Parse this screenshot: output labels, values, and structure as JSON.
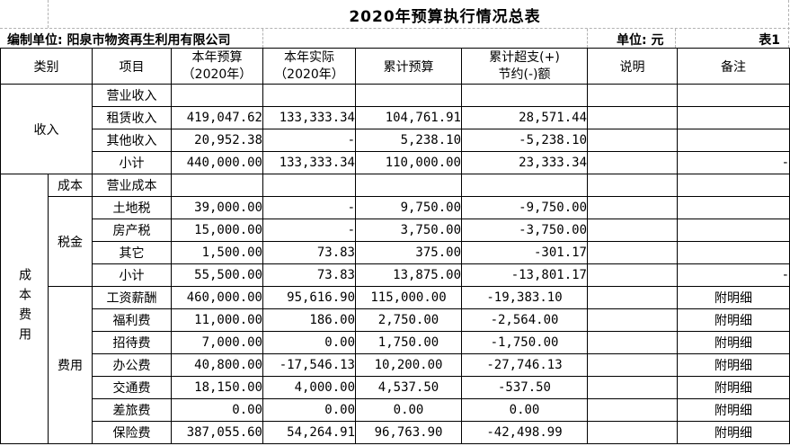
{
  "title": "2020年预算执行情况总表",
  "info": {
    "prepared_by_label": "编制单位:",
    "prepared_by_value": "阳泉市物资再生利用有限公司",
    "unit_label": "单位: 元",
    "sheet_label": "表1"
  },
  "table": {
    "header": {
      "category": "类别",
      "item": "项目",
      "year_budget_line1": "本年预算",
      "year_budget_line2": "（2020年）",
      "year_actual_line1": "本年实际",
      "year_actual_line2": "（2020年）",
      "cum_budget": "累计预算",
      "variance_line1": "累计超支(+)",
      "variance_line2": "节约(-)额",
      "note": "说明",
      "remark": "备注"
    },
    "groups": [
      {
        "label": "收入",
        "orientation": "horizontal",
        "subgroups": [
          {
            "label": "",
            "cum_align": "right",
            "rows": [
              {
                "item": "营业收入",
                "budget": "",
                "actual": "",
                "cum_budget": "",
                "variance": "",
                "note": "",
                "remark": ""
              },
              {
                "item": "租赁收入",
                "budget": "419,047.62",
                "actual": "133,333.34",
                "cum_budget": "104,761.91",
                "variance": "28,571.44",
                "note": "",
                "remark": ""
              },
              {
                "item": "其他收入",
                "budget": "20,952.38",
                "actual": "-",
                "cum_budget": "5,238.10",
                "variance": "-5,238.10",
                "note": "",
                "remark": ""
              },
              {
                "item": "小计",
                "budget": "440,000.00",
                "actual": "133,333.34",
                "cum_budget": "110,000.00",
                "variance": "23,333.34",
                "note": "",
                "remark": "-"
              }
            ]
          }
        ]
      },
      {
        "label": "成本费用",
        "orientation": "vertical",
        "subgroups": [
          {
            "label": "成本",
            "cum_align": "right",
            "rows": [
              {
                "item": "营业成本",
                "budget": "",
                "actual": "",
                "cum_budget": "",
                "variance": "",
                "note": "",
                "remark": ""
              }
            ]
          },
          {
            "label": "税金",
            "cum_align": "right",
            "rows": [
              {
                "item": "土地税",
                "budget": "39,000.00",
                "actual": "-",
                "cum_budget": "9,750.00",
                "variance": "-9,750.00",
                "note": "",
                "remark": ""
              },
              {
                "item": "房产税",
                "budget": "15,000.00",
                "actual": "-",
                "cum_budget": "3,750.00",
                "variance": "-3,750.00",
                "note": "",
                "remark": ""
              },
              {
                "item": "其它",
                "budget": "1,500.00",
                "actual": "73.83",
                "cum_budget": "375.00",
                "variance": "-301.17",
                "note": "",
                "remark": ""
              },
              {
                "item": "小计",
                "budget": "55,500.00",
                "actual": "73.83",
                "cum_budget": "13,875.00",
                "variance": "-13,801.17",
                "note": "",
                "remark": "-"
              }
            ]
          },
          {
            "label": "费用",
            "cum_align": "center",
            "rows": [
              {
                "item": "工资薪酬",
                "budget": "460,000.00",
                "actual": "95,616.90",
                "cum_budget": "115,000.00",
                "variance": "-19,383.10",
                "note": "",
                "remark": "附明细"
              },
              {
                "item": "福利费",
                "budget": "11,000.00",
                "actual": "186.00",
                "cum_budget": "2,750.00",
                "variance": "-2,564.00",
                "note": "",
                "remark": "附明细"
              },
              {
                "item": "招待费",
                "budget": "7,000.00",
                "actual": "0.00",
                "cum_budget": "1,750.00",
                "variance": "-1,750.00",
                "note": "",
                "remark": "附明细"
              },
              {
                "item": "办公费",
                "budget": "40,800.00",
                "actual": "-17,546.13",
                "cum_budget": "10,200.00",
                "variance": "-27,746.13",
                "note": "",
                "remark": "附明细"
              },
              {
                "item": "交通费",
                "budget": "18,150.00",
                "actual": "4,000.00",
                "cum_budget": "4,537.50",
                "variance": "-537.50",
                "note": "",
                "remark": "附明细"
              },
              {
                "item": "差旅费",
                "budget": "0.00",
                "actual": "0.00",
                "cum_budget": "0.00",
                "variance": "0.00",
                "note": "",
                "remark": "附明细"
              },
              {
                "item": "保险费",
                "budget": "387,055.60",
                "actual": "54,264.91",
                "cum_budget": "96,763.90",
                "variance": "-42,498.99",
                "note": "",
                "remark": "附明细"
              }
            ]
          }
        ]
      }
    ]
  }
}
